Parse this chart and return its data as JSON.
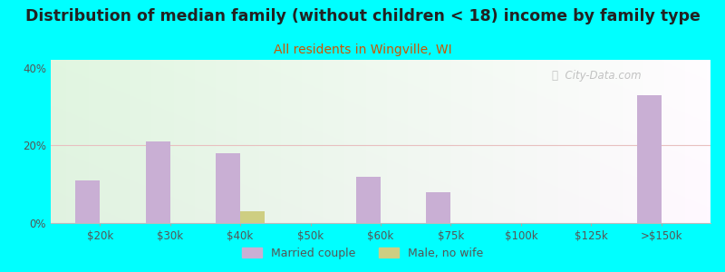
{
  "title": "Distribution of median family (without children < 18) income by family type",
  "subtitle": "All residents in Wingville, WI",
  "categories": [
    "$20k",
    "$30k",
    "$40k",
    "$50k",
    "$60k",
    "$75k",
    "$100k",
    "$125k",
    ">$150k"
  ],
  "married_couple": [
    11,
    21,
    18,
    0,
    12,
    8,
    0,
    0,
    33
  ],
  "male_no_wife": [
    0,
    0,
    3,
    0,
    0,
    0,
    0,
    0,
    0
  ],
  "bar_width": 0.35,
  "married_color": "#c9afd4",
  "male_color": "#cece82",
  "background_outer": "#00FFFF",
  "background_inner": "#e8f5e0",
  "ylim": [
    0,
    42
  ],
  "yticks": [
    0,
    20,
    40
  ],
  "ytick_labels": [
    "0%",
    "20%",
    "40%"
  ],
  "title_fontsize": 12.5,
  "subtitle_fontsize": 10,
  "subtitle_color": "#cc5500",
  "watermark": "  City-Data.com",
  "watermark_icon": "ⓘ",
  "grid_color": "#e8c0c0",
  "axis_color": "#555555",
  "title_color": "#222222"
}
